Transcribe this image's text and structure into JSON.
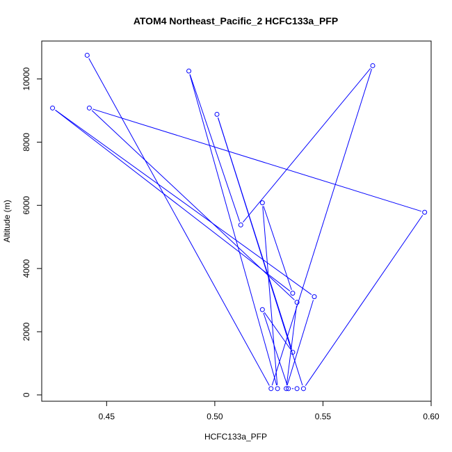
{
  "chart_data": {
    "type": "line",
    "title": "ATOM4 Northeast_Pacific_2 HCFC133a_PFP",
    "xlabel": "HCFC133a_PFP",
    "ylabel": "Altitude (m)",
    "xlim": [
      0.42,
      0.6
    ],
    "ylim": [
      -200,
      11200
    ],
    "x_ticks": [
      0.45,
      0.5,
      0.55,
      0.6
    ],
    "x_tick_labels": [
      "0.45",
      "0.50",
      "0.55",
      "0.60"
    ],
    "y_ticks": [
      0,
      2000,
      4000,
      6000,
      8000,
      10000
    ],
    "y_tick_labels": [
      "0",
      "2000",
      "4000",
      "6000",
      "8000",
      "10000"
    ],
    "grid": false,
    "legend": "none",
    "series": [
      {
        "color": "#0000ff",
        "marker": "open-circle",
        "points": [
          {
            "x": 0.441,
            "y": 10750
          },
          {
            "x": 0.526,
            "y": 200
          },
          {
            "x": 0.573,
            "y": 10420
          },
          {
            "x": 0.512,
            "y": 5380
          },
          {
            "x": 0.488,
            "y": 10250
          },
          {
            "x": 0.529,
            "y": 200
          },
          {
            "x": 0.522,
            "y": 6080
          },
          {
            "x": 0.536,
            "y": 3220
          },
          {
            "x": 0.425,
            "y": 9080
          },
          {
            "x": 0.546,
            "y": 3110
          },
          {
            "x": 0.533,
            "y": 200
          },
          {
            "x": 0.538,
            "y": 2930
          },
          {
            "x": 0.442,
            "y": 9080
          },
          {
            "x": 0.597,
            "y": 5780
          },
          {
            "x": 0.541,
            "y": 200
          },
          {
            "x": 0.501,
            "y": 8880
          },
          {
            "x": 0.536,
            "y": 1350
          },
          {
            "x": 0.522,
            "y": 2700
          },
          {
            "x": 0.534,
            "y": 200
          },
          {
            "x": 0.538,
            "y": 200
          }
        ]
      }
    ]
  }
}
